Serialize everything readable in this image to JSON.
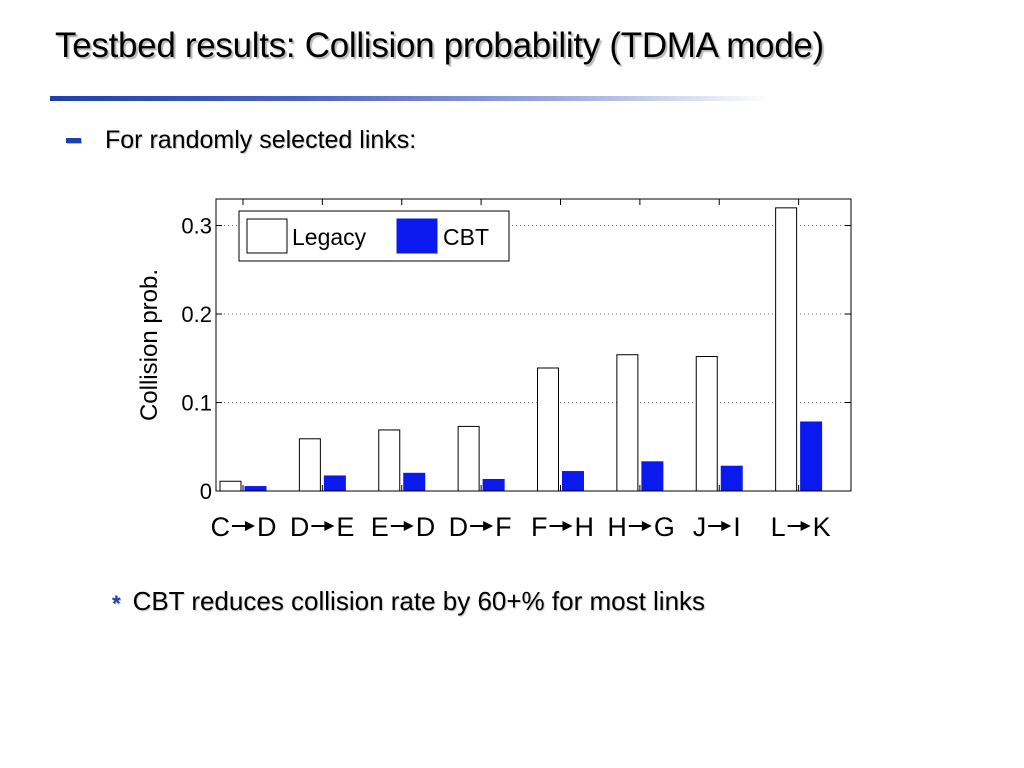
{
  "slide": {
    "title": "Testbed results: Collision probability (TDMA mode)",
    "bullet": "For randomly selected links:",
    "sub_bullet": "CBT reduces collision rate by 60+% for most links",
    "bullet_icon": "dash-icon",
    "sub_bullet_icon": "asterisk-icon",
    "accent_color": "#1e3fae"
  },
  "chart_data": {
    "type": "bar",
    "title": "",
    "xlabel": "",
    "ylabel": "Collision prob.",
    "ylim": [
      0,
      0.33
    ],
    "yticks": [
      0,
      0.1,
      0.2,
      0.3
    ],
    "ytick_labels": [
      "0",
      "0.1",
      "0.2",
      "0.3"
    ],
    "grid": "horizontal dotted",
    "legend": "top-left",
    "categories": [
      {
        "from": "C",
        "to": "D"
      },
      {
        "from": "D",
        "to": "E"
      },
      {
        "from": "E",
        "to": "D"
      },
      {
        "from": "D",
        "to": "F"
      },
      {
        "from": "F",
        "to": "H"
      },
      {
        "from": "H",
        "to": "G"
      },
      {
        "from": "J",
        "to": "I"
      },
      {
        "from": "L",
        "to": "K"
      }
    ],
    "series": [
      {
        "name": "Legacy",
        "fill": "#ffffff",
        "stroke": "#000000",
        "values": [
          0.011,
          0.059,
          0.069,
          0.073,
          0.139,
          0.154,
          0.152,
          0.32
        ]
      },
      {
        "name": "CBT",
        "fill": "#0a1aee",
        "stroke": "#0a1aee",
        "values": [
          0.005,
          0.017,
          0.02,
          0.013,
          0.022,
          0.033,
          0.028,
          0.078
        ]
      }
    ]
  }
}
